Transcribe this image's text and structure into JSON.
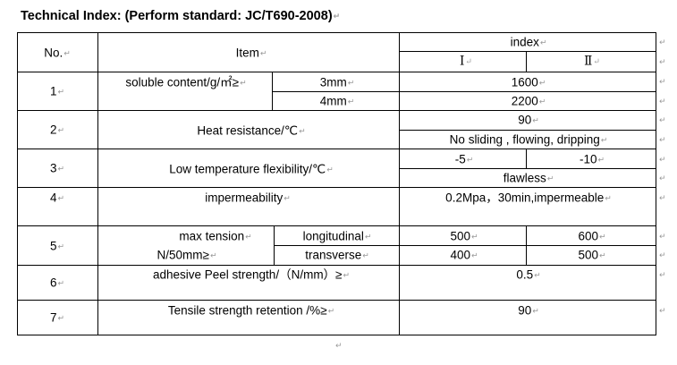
{
  "title": "Technical Index: (Perform standard: JC/T690-2008)",
  "mark": "↵",
  "header": {
    "no": "No.",
    "item": "Item",
    "index": "index",
    "grade1": "Ⅰ",
    "grade2": "Ⅱ"
  },
  "rows": [
    {
      "no": "1",
      "item": "soluble content/g/㎡≥",
      "subs": [
        {
          "label": "3mm",
          "value": "1600"
        },
        {
          "label": "4mm",
          "value": "2200"
        }
      ]
    },
    {
      "no": "2",
      "item": "Heat resistance/℃",
      "value": "90",
      "note": "No sliding , flowing, dripping"
    },
    {
      "no": "3",
      "item": "Low temperature flexibility/℃",
      "v1": "-5",
      "v2": "-10",
      "note": "flawless"
    },
    {
      "no": "4",
      "item": "impermeability",
      "value": "0.2Mpa，30min,impermeable"
    },
    {
      "no": "5",
      "item_line1": "max tension",
      "item_line2": "N/50mm≥",
      "subs": [
        {
          "label": "longitudinal",
          "v1": "500",
          "v2": "600"
        },
        {
          "label": "transverse",
          "v1": "400",
          "v2": "500"
        }
      ]
    },
    {
      "no": "6",
      "item": "adhesive Peel strength/（N/mm）≥",
      "value": "0.5"
    },
    {
      "no": "7",
      "item": "Tensile strength retention /%≥",
      "value": "90"
    }
  ]
}
